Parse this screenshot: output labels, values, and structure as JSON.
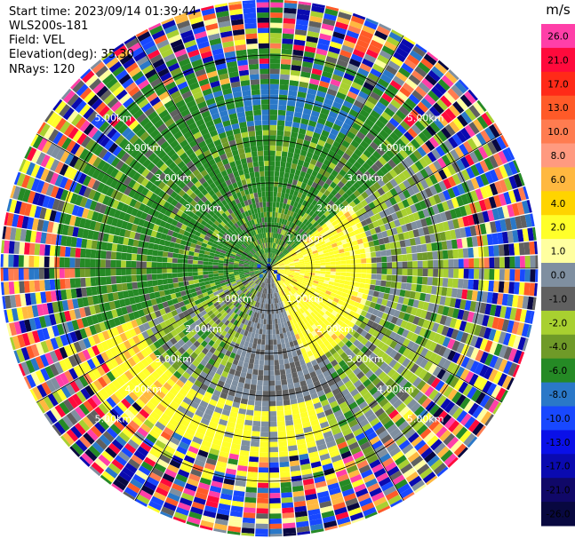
{
  "header": {
    "start_time": "Start time: 2023/09/14 01:39:44",
    "site": "WLS200s-181",
    "field": "Field: VEL",
    "elevation": "Elevation(deg): 35.30",
    "nrays": "NRays: 120"
  },
  "colorbar": {
    "unit": "m/s",
    "ticks": [
      "26.0",
      "21.0",
      "17.0",
      "13.0",
      "10.0",
      "8.0",
      "6.0",
      "4.0",
      "2.0",
      "1.0",
      "0.0",
      "-1.0",
      "-2.0",
      "-4.0",
      "-6.0",
      "-8.0",
      "-10.0",
      "-13.0",
      "-17.0",
      "-21.0",
      "-26.0",
      "-30.0"
    ],
    "colors": [
      "#ff3fa8",
      "#ff0a3c",
      "#ff2a18",
      "#ff5a28",
      "#ff7c50",
      "#ff9a80",
      "#ffb840",
      "#ffd400",
      "#ffff2a",
      "#ffffa0",
      "#7f8fa0",
      "#606060",
      "#a8d030",
      "#6f9a28",
      "#258a25",
      "#2a78c8",
      "#1848ff",
      "#0a10e8",
      "#0a0ab0",
      "#100868",
      "#080840"
    ]
  },
  "chart_data": {
    "type": "heatmap",
    "projection": "polar-ppi",
    "field": "VEL",
    "units": "m/s",
    "nrays": 120,
    "range_rings_km": [
      1.0,
      2.0,
      3.0,
      4.0,
      5.0
    ],
    "ring_labels": [
      "1.00km",
      "2.00km",
      "3.00km",
      "4.00km",
      "5.00km"
    ],
    "max_range_km": 6.3,
    "spokes_deg": [
      0,
      30,
      60,
      90,
      120,
      150,
      180,
      210,
      240,
      270,
      300,
      330
    ],
    "pattern": [
      {
        "sector": "north",
        "inner_km": 0.6,
        "outer_km": 3.3,
        "velocity": "-6.0"
      },
      {
        "sector": "north-northeast",
        "inner_km": 3.5,
        "outer_km": 4.3,
        "velocity": "-8.0"
      },
      {
        "sector": "east-southeast",
        "inner_km": 0.0,
        "outer_km": 2.5,
        "velocity": "2.0"
      },
      {
        "sector": "south-southwest",
        "inner_km": 4.5,
        "outer_km": 6.2,
        "velocity": "4.0"
      },
      {
        "sector": "south",
        "inner_km": 3.5,
        "outer_km": 5.5,
        "velocity": "0.0"
      },
      {
        "sector": "west",
        "inner_km": 1.0,
        "outer_km": 5.0,
        "velocity": "-2.0"
      }
    ]
  }
}
